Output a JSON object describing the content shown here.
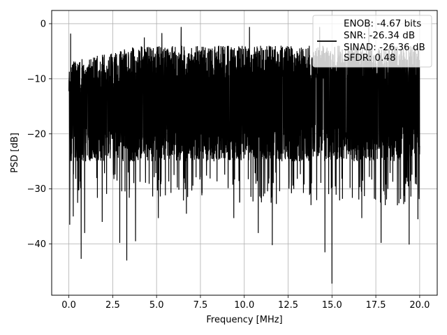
{
  "chart_data": {
    "type": "line",
    "title": "",
    "xlabel": "Frequency [MHz]",
    "ylabel": "PSD [dB]",
    "xlim": [
      -0.98,
      21.0
    ],
    "ylim": [
      -49.3,
      2.4
    ],
    "xticks": [
      0.0,
      2.5,
      5.0,
      7.5,
      10.0,
      12.5,
      15.0,
      17.5,
      20.0
    ],
    "xtick_labels": [
      "0.0",
      "2.5",
      "5.0",
      "7.5",
      "10.0",
      "12.5",
      "15.0",
      "17.5",
      "20.0"
    ],
    "yticks": [
      0,
      -10,
      -20,
      -30,
      -40
    ],
    "ytick_labels": [
      "0",
      "−10",
      "−20",
      "−30",
      "−40"
    ],
    "grid": true,
    "legend_position": "top-right",
    "color": "#000000",
    "series": [
      {
        "description": "noise-like power spectral density trace, dense oscillation between roughly -25 dB and -5 dB",
        "x_range": [
          0.0,
          20.0
        ],
        "typical_upper_envelope": -4,
        "typical_lower_envelope": -25,
        "peaks": [
          {
            "x": 0.05,
            "y": -1.6
          },
          {
            "x": 0.1,
            "y": -1.8
          },
          {
            "x": 4.3,
            "y": -2.5
          },
          {
            "x": 5.3,
            "y": -1.7
          },
          {
            "x": 6.4,
            "y": -0.6
          },
          {
            "x": 10.3,
            "y": -0.6
          },
          {
            "x": 14.3,
            "y": -0.6
          },
          {
            "x": 17.1,
            "y": -0.5
          }
        ],
        "dips": [
          {
            "x": 0.05,
            "y": -36.5
          },
          {
            "x": 0.25,
            "y": -35
          },
          {
            "x": 0.7,
            "y": -42.7
          },
          {
            "x": 0.9,
            "y": -38
          },
          {
            "x": 1.9,
            "y": -36
          },
          {
            "x": 2.9,
            "y": -39.8
          },
          {
            "x": 3.3,
            "y": -43.0
          },
          {
            "x": 3.8,
            "y": -39.5
          },
          {
            "x": 5.1,
            "y": -35.3
          },
          {
            "x": 6.7,
            "y": -34.5
          },
          {
            "x": 9.4,
            "y": -35.3
          },
          {
            "x": 10.8,
            "y": -38
          },
          {
            "x": 11.6,
            "y": -40.2
          },
          {
            "x": 14.6,
            "y": -41.5
          },
          {
            "x": 15.0,
            "y": -47.2
          },
          {
            "x": 16.7,
            "y": -35.3
          },
          {
            "x": 17.8,
            "y": -39.8
          },
          {
            "x": 19.4,
            "y": -40.1
          },
          {
            "x": 19.9,
            "y": -35.5
          }
        ]
      }
    ],
    "legend": [
      "ENOB: -4.67 bits",
      "SNR: -26.34 dB",
      "SINAD: -26.36 dB",
      "SFDR: 0.48"
    ]
  }
}
